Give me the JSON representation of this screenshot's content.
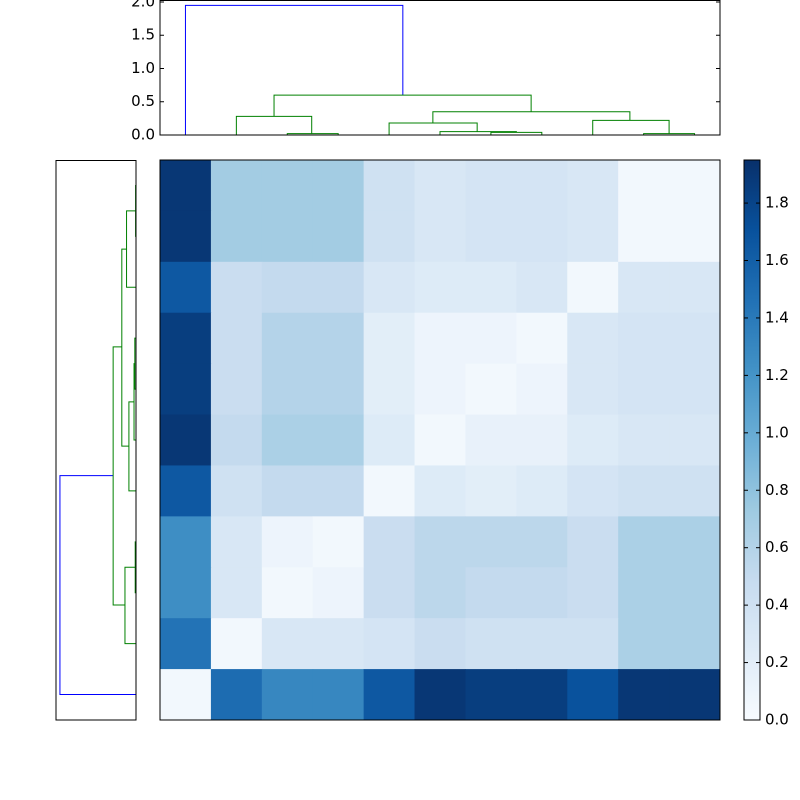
{
  "chart_data": [
    {
      "type": "heatmap",
      "values": [
        [
          1.9,
          0.7,
          0.7,
          0.7,
          0.4,
          0.3,
          0.35,
          0.35,
          0.3,
          0.05,
          0.05
        ],
        [
          1.9,
          0.7,
          0.7,
          0.7,
          0.4,
          0.3,
          0.35,
          0.35,
          0.3,
          0.05,
          0.05
        ],
        [
          1.65,
          0.45,
          0.5,
          0.5,
          0.3,
          0.25,
          0.25,
          0.3,
          0.05,
          0.3,
          0.3
        ],
        [
          1.85,
          0.45,
          0.6,
          0.6,
          0.2,
          0.1,
          0.1,
          0.05,
          0.3,
          0.35,
          0.35
        ],
        [
          1.85,
          0.45,
          0.6,
          0.6,
          0.2,
          0.1,
          0.05,
          0.1,
          0.3,
          0.35,
          0.35
        ],
        [
          1.9,
          0.5,
          0.65,
          0.65,
          0.25,
          0.05,
          0.15,
          0.15,
          0.25,
          0.3,
          0.3
        ],
        [
          1.65,
          0.4,
          0.5,
          0.5,
          0.05,
          0.25,
          0.2,
          0.25,
          0.35,
          0.4,
          0.4
        ],
        [
          1.25,
          0.3,
          0.1,
          0.05,
          0.45,
          0.55,
          0.55,
          0.55,
          0.45,
          0.65,
          0.65
        ],
        [
          1.25,
          0.3,
          0.05,
          0.1,
          0.45,
          0.55,
          0.5,
          0.5,
          0.45,
          0.65,
          0.65
        ],
        [
          1.45,
          0.05,
          0.3,
          0.3,
          0.35,
          0.45,
          0.4,
          0.4,
          0.4,
          0.65,
          0.65
        ],
        [
          0.05,
          1.5,
          1.3,
          1.3,
          1.65,
          1.9,
          1.85,
          1.85,
          1.7,
          1.9,
          1.9
        ]
      ],
      "colormap": [
        "#f7fbff",
        "#deebf7",
        "#c6dbef",
        "#9ecae1",
        "#6baed6",
        "#4292c6",
        "#2171b5",
        "#08519c",
        "#08306b"
      ],
      "clim": [
        0,
        1.95
      ],
      "cticks": [
        {
          "value": 0,
          "label": "0.0"
        },
        {
          "value": 0.2,
          "label": "0.2"
        },
        {
          "value": 0.4,
          "label": "0.4"
        },
        {
          "value": 0.6,
          "label": "0.6"
        },
        {
          "value": 0.8,
          "label": "0.8"
        },
        {
          "value": 1.0,
          "label": "1.0"
        },
        {
          "value": 1.2,
          "label": "1.2"
        },
        {
          "value": 1.4,
          "label": "1.4"
        },
        {
          "value": 1.6,
          "label": "1.6"
        },
        {
          "value": 1.8,
          "label": "1.8"
        }
      ]
    },
    {
      "type": "dendrogram",
      "orientation": "top",
      "xlim": [
        0,
        11
      ],
      "ylim": [
        0,
        2.03
      ],
      "yticks": [
        {
          "value": 0,
          "label": "0.0"
        },
        {
          "value": 0.5,
          "label": "0.5"
        },
        {
          "value": 1.0,
          "label": "1.0"
        },
        {
          "value": 1.5,
          "label": "1.5"
        },
        {
          "value": 2.0,
          "label": "2.0"
        }
      ],
      "links": [
        {
          "pos": [
            0.5,
            0.5,
            4.77,
            4.77
          ],
          "h": [
            0,
            1.95,
            1.95,
            0.6
          ],
          "color": "#0000ff"
        },
        {
          "pos": [
            2.24,
            2.24,
            7.29,
            7.29
          ],
          "h": [
            0.28,
            0.6,
            0.6,
            0.35
          ],
          "color": "#008000"
        },
        {
          "pos": [
            1.5,
            1.5,
            2.98,
            2.98
          ],
          "h": [
            0,
            0.28,
            0.28,
            0.02
          ],
          "color": "#008000"
        },
        {
          "pos": [
            2.5,
            2.5,
            3.5,
            3.5
          ],
          "h": [
            0,
            0.02,
            0.02,
            0
          ],
          "color": "#008000"
        },
        {
          "pos": [
            5.36,
            5.36,
            9.23,
            9.23
          ],
          "h": [
            0.18,
            0.35,
            0.35,
            0.22
          ],
          "color": "#008000"
        },
        {
          "pos": [
            4.5,
            4.5,
            6.23,
            6.23
          ],
          "h": [
            0,
            0.18,
            0.18,
            0.05
          ],
          "color": "#008000"
        },
        {
          "pos": [
            5.5,
            5.5,
            7.0,
            7.0
          ],
          "h": [
            0,
            0.05,
            0.05,
            0.04
          ],
          "color": "#008000"
        },
        {
          "pos": [
            6.5,
            6.5,
            7.5,
            7.5
          ],
          "h": [
            0,
            0.04,
            0.04,
            0
          ],
          "color": "#008000"
        },
        {
          "pos": [
            8.5,
            8.5,
            10.0,
            10.0
          ],
          "h": [
            0,
            0.22,
            0.22,
            0.02
          ],
          "color": "#008000"
        },
        {
          "pos": [
            9.5,
            9.5,
            10.5,
            10.5
          ],
          "h": [
            0,
            0.02,
            0.02,
            0
          ],
          "color": "#008000"
        }
      ]
    },
    {
      "type": "dendrogram",
      "orientation": "left",
      "xlim": [
        2.03,
        0
      ],
      "ylim": [
        11,
        0
      ],
      "links": [
        {
          "pos": [
            10.5,
            10.5,
            6.2,
            6.2
          ],
          "h": [
            0,
            1.93,
            1.93,
            0.58
          ],
          "color": "#0000ff"
        },
        {
          "pos": [
            3.67,
            3.67,
            8.74,
            8.74
          ],
          "h": [
            0.36,
            0.58,
            0.58,
            0.28
          ],
          "color": "#008000"
        },
        {
          "pos": [
            1.75,
            1.75,
            5.62,
            5.62
          ],
          "h": [
            0.24,
            0.36,
            0.36,
            0.18
          ],
          "color": "#008000"
        },
        {
          "pos": [
            1.0,
            1.0,
            2.5,
            2.5
          ],
          "h": [
            0.01,
            0.24,
            0.24,
            0
          ],
          "color": "#008000"
        },
        {
          "pos": [
            0.5,
            0.5,
            1.5,
            1.5
          ],
          "h": [
            0,
            0.01,
            0.01,
            0
          ],
          "color": "#008000"
        },
        {
          "pos": [
            4.75,
            4.75,
            6.5,
            6.5
          ],
          "h": [
            0.05,
            0.18,
            0.18,
            0
          ],
          "color": "#008000"
        },
        {
          "pos": [
            4.0,
            4.0,
            5.5,
            5.5
          ],
          "h": [
            0.03,
            0.05,
            0.05,
            0
          ],
          "color": "#008000"
        },
        {
          "pos": [
            3.5,
            3.5,
            4.5,
            4.5
          ],
          "h": [
            0,
            0.03,
            0.03,
            0
          ],
          "color": "#008000"
        },
        {
          "pos": [
            8.0,
            8.0,
            9.5,
            9.5
          ],
          "h": [
            0.02,
            0.28,
            0.28,
            0
          ],
          "color": "#008000"
        },
        {
          "pos": [
            7.5,
            7.5,
            8.5,
            8.5
          ],
          "h": [
            0,
            0.02,
            0.02,
            0
          ],
          "color": "#008000"
        }
      ]
    }
  ]
}
